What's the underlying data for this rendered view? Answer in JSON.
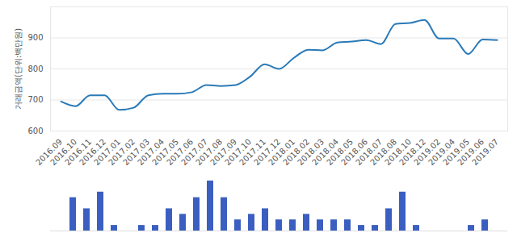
{
  "chart_data": [
    {
      "type": "line",
      "y_label": "거래금액(단위:백만원)",
      "categories": [
        "2016.09",
        "2016.10",
        "2016.11",
        "2016.12",
        "2017.01",
        "2017.02",
        "2017.03",
        "2017.04",
        "2017.05",
        "2017.06",
        "2017.07",
        "2017.08",
        "2017.09",
        "2017.10",
        "2017.11",
        "2017.12",
        "2018.01",
        "2018.02",
        "2018.03",
        "2018.04",
        "2018.05",
        "2018.06",
        "2018.07",
        "2018.08",
        "2018.10",
        "2018.12",
        "2019.02",
        "2019.04",
        "2019.05",
        "2019.06",
        "2019.07"
      ],
      "values": [
        695,
        680,
        715,
        715,
        668,
        675,
        715,
        720,
        720,
        725,
        748,
        745,
        748,
        775,
        815,
        800,
        835,
        862,
        860,
        885,
        888,
        893,
        880,
        945,
        948,
        958,
        898,
        898,
        848,
        895,
        893
      ],
      "color": "#2a7ab8",
      "ylim": [
        600,
        1000
      ],
      "yticks": [
        600,
        700,
        800,
        900
      ],
      "grid": true
    },
    {
      "type": "bar",
      "categories": [
        "2016.09",
        "2016.10",
        "2016.11",
        "2016.12",
        "2017.01",
        "2017.02",
        "2017.03",
        "2017.04",
        "2017.05",
        "2017.06",
        "2017.07",
        "2017.08",
        "2017.09",
        "2017.10",
        "2017.11",
        "2017.12",
        "2018.01",
        "2018.02",
        "2018.03",
        "2018.04",
        "2018.05",
        "2018.06",
        "2018.07",
        "2018.08",
        "2018.10",
        "2018.12",
        "2019.02",
        "2019.04",
        "2019.05",
        "2019.06",
        "2019.07"
      ],
      "values": [
        6,
        4,
        7,
        1,
        0,
        1,
        1,
        4,
        3,
        6,
        9,
        6,
        2,
        3,
        4,
        2,
        2,
        3,
        2,
        2,
        2,
        1,
        1,
        4,
        7,
        1,
        0,
        0,
        0,
        1,
        2
      ],
      "color": "#3b5fc0",
      "ylim": [
        0,
        9
      ],
      "tick_labels": false
    }
  ]
}
